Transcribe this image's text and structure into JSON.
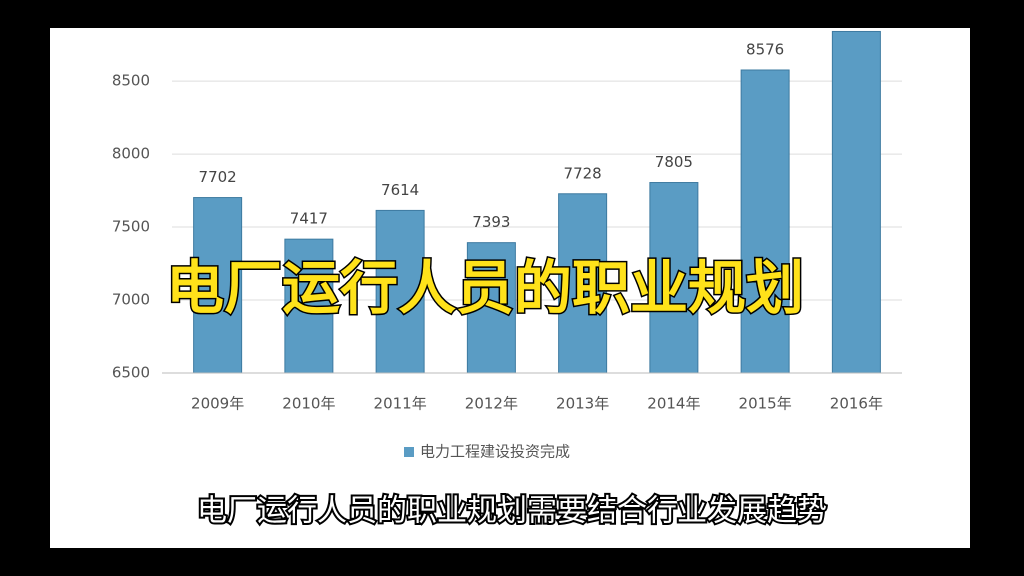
{
  "chart_data": {
    "type": "bar",
    "categories": [
      "2009年",
      "2010年",
      "2011年",
      "2012年",
      "2013年",
      "2014年",
      "2015年",
      "2016年"
    ],
    "series": [
      {
        "name": "电力工程建设投资完成",
        "color": "#5a9cc4",
        "values": [
          7702,
          7417,
          7614,
          7393,
          7728,
          7805,
          8576,
          8840
        ],
        "value_labels": [
          "7702",
          "7417",
          "7614",
          "7393",
          "7728",
          "7805",
          "8576",
          null
        ]
      }
    ],
    "ylim": [
      6500,
      8850
    ],
    "yticks": [
      6500,
      7000,
      7500,
      8000,
      8500
    ],
    "grid": true,
    "legend": "bottom"
  },
  "overlay": {
    "caption": "电厂运行人员的职业规划",
    "subtitle": "电厂运行人员的职业规划需要结合行业发展趋势"
  }
}
